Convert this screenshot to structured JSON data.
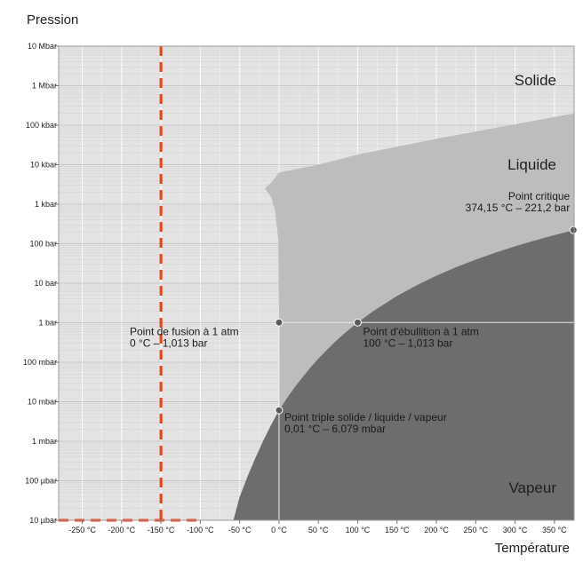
{
  "chart_data": {
    "type": "line",
    "title": "",
    "xlabel": "Température",
    "ylabel": "Pression",
    "x_ticks": [
      "-250 °C",
      "-200 °C",
      "-150 °C",
      "-100 °C",
      "-50 °C",
      "0 °C",
      "50 °C",
      "100 °C",
      "150 °C",
      "200 °C",
      "250 °C",
      "300 °C",
      "350 °C"
    ],
    "x_tick_values": [
      -250,
      -200,
      -150,
      -100,
      -50,
      0,
      50,
      100,
      150,
      200,
      250,
      300,
      350
    ],
    "y_ticks": [
      "10 Mbar",
      "1 Mbar",
      "100 kbar",
      "10 kbar",
      "1 kbar",
      "100 bar",
      "10 bar",
      "1 bar",
      "100 mbar",
      "10 mbar",
      "1 mbar",
      "100 µbar",
      "10 µbar"
    ],
    "y_tick_values_bar": [
      10000000,
      1000000,
      100000,
      10000,
      1000,
      100,
      10,
      1,
      0.1,
      0.01,
      0.001,
      0.0001,
      1e-05
    ],
    "xlim": [
      -280,
      375
    ],
    "ylim_bar": [
      1e-05,
      10000000
    ],
    "y_scale": "log",
    "grid": true,
    "regions": [
      {
        "name": "Solide",
        "color": "#e3e3e3"
      },
      {
        "name": "Liquide",
        "color": "#bdbdbd"
      },
      {
        "name": "Vapeur",
        "color": "#6d6d6d"
      }
    ],
    "series": [
      {
        "kind": "vaporization-curve",
        "points": [
          [
            0.01,
            0.006079
          ],
          [
            10,
            0.0123
          ],
          [
            20,
            0.0234
          ],
          [
            30,
            0.0424
          ],
          [
            40,
            0.0738
          ],
          [
            50,
            0.123
          ],
          [
            60,
            0.199
          ],
          [
            70,
            0.312
          ],
          [
            80,
            0.474
          ],
          [
            90,
            0.701
          ],
          [
            100,
            1.013
          ],
          [
            120,
            1.985
          ],
          [
            150,
            4.76
          ],
          [
            175,
            8.92
          ],
          [
            200,
            15.5
          ],
          [
            225,
            25.5
          ],
          [
            250,
            39.7
          ],
          [
            275,
            59.5
          ],
          [
            300,
            85.9
          ],
          [
            325,
            120.6
          ],
          [
            350,
            165.3
          ],
          [
            374.15,
            221.2
          ]
        ]
      },
      {
        "kind": "sublimation-curve",
        "points": [
          [
            0.01,
            0.006079
          ],
          [
            -10,
            0.0026
          ],
          [
            -20,
            0.00103
          ],
          [
            -30,
            0.00038
          ],
          [
            -40,
            0.000128
          ],
          [
            -50,
            3.94e-05
          ]
        ]
      },
      {
        "kind": "melting-curve",
        "points": [
          [
            0.01,
            0.006079
          ],
          [
            0,
            1.013
          ],
          [
            -1,
            130
          ],
          [
            -5,
            700
          ],
          [
            -10,
            1500
          ],
          [
            -18,
            2500
          ],
          [
            -10,
            3500
          ],
          [
            0,
            6300
          ],
          [
            50,
            10000
          ],
          [
            100,
            18000
          ],
          [
            200,
            45000
          ],
          [
            375,
            200000
          ]
        ]
      }
    ],
    "highlight_lines": [
      {
        "axis": "x",
        "value": -150,
        "style": "dashed",
        "color": "#e8401c"
      },
      {
        "axis": "y",
        "value_bar": 1e-05,
        "x_range": [
          -280,
          -100
        ],
        "style": "dashed",
        "color": "#e8401c"
      }
    ],
    "reference_lines": [
      {
        "axis": "x",
        "value": 0
      },
      {
        "axis": "y",
        "value_bar": 1.013
      }
    ],
    "points": [
      {
        "x": 0,
        "y_bar": 1.013,
        "label_lines": [
          "Point de fusion à 1 atm",
          "0 °C – 1,013 bar"
        ]
      },
      {
        "x": 100,
        "y_bar": 1.013,
        "label_lines": [
          "Point d'ébullition à 1 atm",
          "100 °C – 1,013 bar"
        ]
      },
      {
        "x": 0.01,
        "y_bar": 0.006079,
        "label_lines": [
          "Point triple solide / liquide / vapeur",
          "0,01 °C – 6,079 mbar"
        ]
      },
      {
        "x": 374.15,
        "y_bar": 221.2,
        "label_lines": [
          "Point critique",
          "374,15 °C – 221,2 bar"
        ]
      }
    ]
  }
}
